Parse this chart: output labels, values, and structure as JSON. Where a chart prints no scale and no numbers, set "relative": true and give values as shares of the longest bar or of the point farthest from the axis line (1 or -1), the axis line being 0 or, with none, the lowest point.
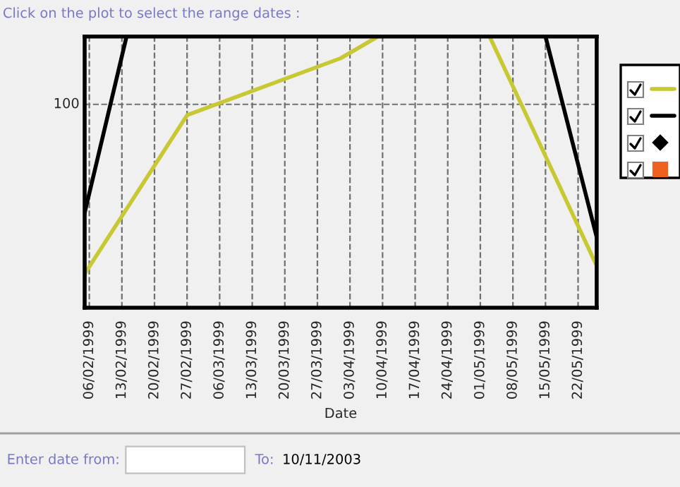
{
  "chart_data": {
    "type": "line",
    "title": "Click on the plot to select the range dates :",
    "xlabel": "Date",
    "relative": true,
    "xlim": [
      "1999-02-05",
      "1999-05-26"
    ],
    "xticks": [
      {
        "value": "1999-02-06",
        "label": "06/02/1999"
      },
      {
        "value": "1999-02-13",
        "label": "13/02/1999"
      },
      {
        "value": "1999-02-20",
        "label": "20/02/1999"
      },
      {
        "value": "1999-02-27",
        "label": "27/02/1999"
      },
      {
        "value": "1999-03-06",
        "label": "06/03/1999"
      },
      {
        "value": "1999-03-13",
        "label": "13/03/1999"
      },
      {
        "value": "1999-03-20",
        "label": "20/03/1999"
      },
      {
        "value": "1999-03-27",
        "label": "27/03/1999"
      },
      {
        "value": "1999-04-03",
        "label": "03/04/1999"
      },
      {
        "value": "1999-04-10",
        "label": "10/04/1999"
      },
      {
        "value": "1999-04-17",
        "label": "17/04/1999"
      },
      {
        "value": "1999-04-24",
        "label": "24/04/1999"
      },
      {
        "value": "1999-05-01",
        "label": "01/05/1999"
      },
      {
        "value": "1999-05-08",
        "label": "08/05/1999"
      },
      {
        "value": "1999-05-15",
        "label": "15/05/1999"
      },
      {
        "value": "1999-05-22",
        "label": "22/05/1999"
      }
    ],
    "series": [
      {
        "color": "#c8c832",
        "x": [
          "1999-02-05",
          "1999-02-27",
          "1999-04-01",
          "1999-04-09"
        ],
        "values": [
          0.125,
          0.71,
          0.92,
          1
        ]
      },
      {
        "color": "#c8c832",
        "x": [
          "1999-05-03",
          "1999-05-26"
        ],
        "values": [
          1,
          0.155
        ]
      },
      {
        "color": "#000000",
        "x": [
          "1999-02-05",
          "1999-02-14"
        ],
        "values": [
          0.35,
          1
        ]
      },
      {
        "color": "#000000",
        "x": [
          "1999-05-15",
          "1999-05-26"
        ],
        "values": [
          1,
          0.26
        ]
      }
    ],
    "ref_lines": [
      {
        "axis": "y",
        "value": 0.75,
        "color": "#808080",
        "line_style": "dashed"
      }
    ],
    "grid": "x",
    "annotations": [
      "100",
      "Enter date from:",
      "To:",
      "10/11/2003"
    ]
  }
}
